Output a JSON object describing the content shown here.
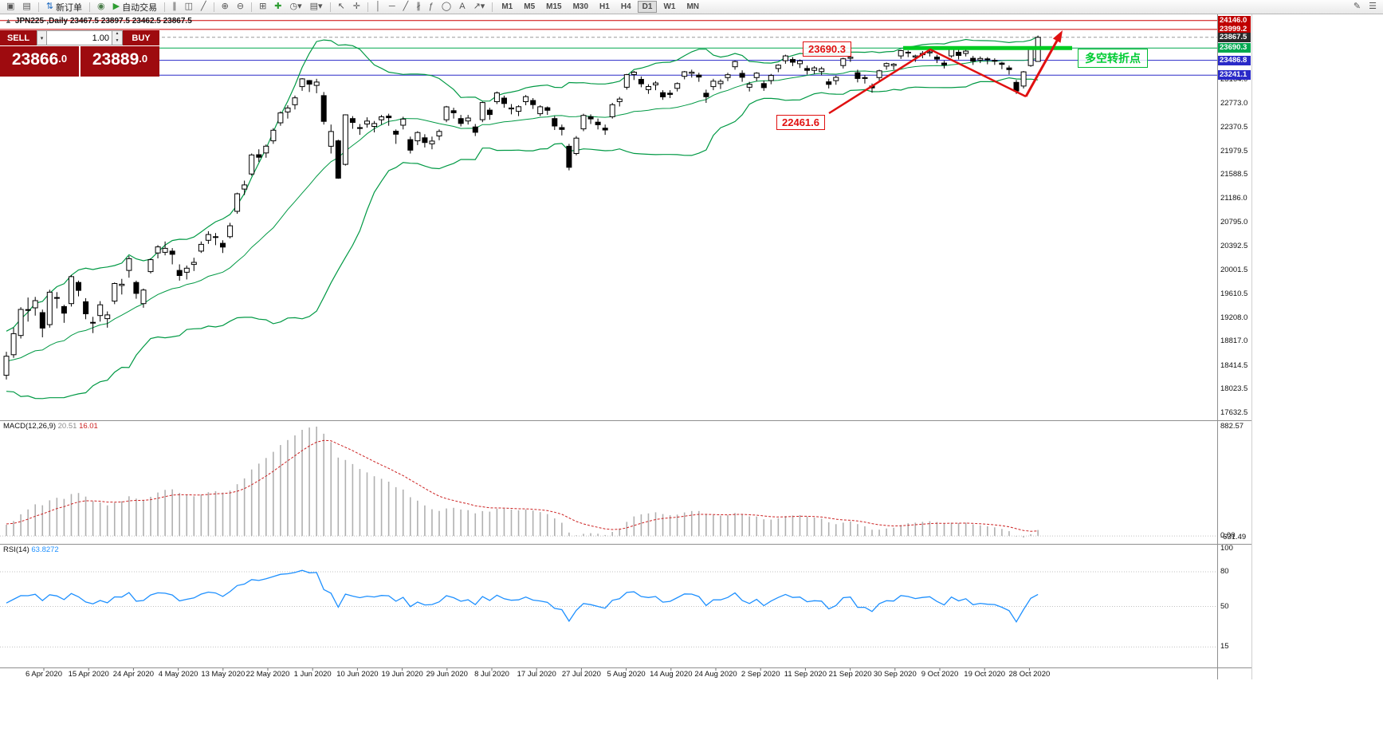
{
  "toolbar": {
    "groups": [
      {
        "items": [
          {
            "name": "new-chart-icon",
            "glyph": "▣"
          },
          {
            "name": "profiles-icon",
            "glyph": "▤"
          }
        ]
      },
      {
        "items": [
          {
            "name": "new-order-button",
            "glyph": "⇅",
            "glyph_color": "#1565c0",
            "label": "新订单"
          }
        ]
      },
      {
        "items": [
          {
            "name": "alerts-icon",
            "glyph": "◉",
            "glyph_color": "#4a7d4a"
          },
          {
            "name": "autotrade-button",
            "glyph": "▶",
            "glyph_color": "#2e9d32",
            "label": "自动交易"
          }
        ]
      },
      {
        "items": [
          {
            "name": "bar-chart-icon",
            "glyph": "∥"
          },
          {
            "name": "candlestick-chart-icon",
            "glyph": "◫"
          },
          {
            "name": "line-chart-icon",
            "glyph": "╱"
          }
        ]
      },
      {
        "items": [
          {
            "name": "zoom-in-icon",
            "glyph": "⊕"
          },
          {
            "name": "zoom-out-icon",
            "glyph": "⊖"
          }
        ]
      },
      {
        "items": [
          {
            "name": "tile-windows-icon",
            "glyph": "⊞"
          },
          {
            "name": "indicators-icon",
            "glyph": "✚",
            "glyph_color": "#2e9d32"
          },
          {
            "name": "periods-icon",
            "glyph": "◷▾"
          },
          {
            "name": "templates-icon",
            "glyph": "▤▾"
          }
        ]
      },
      {
        "items": [
          {
            "name": "cursor-icon",
            "glyph": "↖"
          },
          {
            "name": "crosshair-icon",
            "glyph": "✛"
          }
        ]
      },
      {
        "items": [
          {
            "name": "vertical-line-icon",
            "glyph": "│"
          },
          {
            "name": "horizontal-line-icon",
            "glyph": "─"
          },
          {
            "name": "trendline-icon",
            "glyph": "╱"
          },
          {
            "name": "channel-icon",
            "glyph": "∦"
          },
          {
            "name": "fibonacci-icon",
            "glyph": "ƒ"
          },
          {
            "name": "ellipse-icon",
            "glyph": "◯"
          },
          {
            "name": "text-icon",
            "glyph": "A"
          },
          {
            "name": "arrow-tool-icon",
            "glyph": "↗▾"
          }
        ]
      }
    ],
    "timeframes": [
      "M1",
      "M5",
      "M15",
      "M30",
      "H1",
      "H4",
      "D1",
      "W1",
      "MN"
    ],
    "active_timeframe": "D1",
    "right_icons": [
      {
        "name": "edit-icon",
        "glyph": "✎"
      },
      {
        "name": "menu-icon",
        "glyph": "☰"
      }
    ]
  },
  "trade_panel": {
    "sell_label": "SELL",
    "buy_label": "BUY",
    "volume": "1.00",
    "sell_price": "23866",
    "sell_frac": ".0",
    "buy_price": "23889",
    "buy_frac": ".0"
  },
  "chart": {
    "panel_toggle": "▲",
    "title": "JPN225·,Daily  23467.5 23897.5 23462.5 23867.5"
  },
  "price_axis": {
    "scale": [
      23164.0,
      22773.0,
      22370.5,
      21979.5,
      21588.5,
      21186.0,
      20795.0,
      20392.5,
      20001.5,
      19610.5,
      19208.0,
      18817.0,
      18414.5,
      18023.5,
      17632.5
    ],
    "tags": [
      {
        "label": "24146.0",
        "price": 24146.0,
        "bg": "#c00000"
      },
      {
        "label": "23999.2",
        "price": 23999.2,
        "bg": "#c00000"
      },
      {
        "label": "23867.5",
        "price": 23867.5,
        "bg": "#2a2a2a"
      },
      {
        "label": "23690.3",
        "price": 23690.3,
        "bg": "#00a84f"
      },
      {
        "label": "23486.8",
        "price": 23486.8,
        "bg": "#2a2ac8"
      },
      {
        "label": "23241.1",
        "price": 23241.1,
        "bg": "#2a2ac8"
      }
    ]
  },
  "indicator_panels": {
    "macd": {
      "name": "MACD(12,26,9)",
      "value_main": "20.51",
      "value_signal": "16.01",
      "axis_max": "882.57",
      "axis_zero": "0.00",
      "axis_min": "-631.49"
    },
    "rsi": {
      "name": "RSI(14)",
      "value": "63.8272",
      "levels": [
        100,
        80,
        50,
        15
      ]
    }
  },
  "annotations": {
    "resistance_label": "23690.3",
    "support_label": "22461.6",
    "turning_point_label": "多空转折点"
  },
  "date_axis": {
    "labels": [
      "6 Apr 2020",
      "15 Apr 2020",
      "24 Apr 2020",
      "4 May 2020",
      "13 May 2020",
      "22 May 2020",
      "1 Jun 2020",
      "10 Jun 2020",
      "19 Jun 2020",
      "29 Jun 2020",
      "8 Jul 2020",
      "17 Jul 2020",
      "27 Jul 2020",
      "5 Aug 2020",
      "14 Aug 2020",
      "24 Aug 2020",
      "2 Sep 2020",
      "11 Sep 2020",
      "21 Sep 2020",
      "30 Sep 2020",
      "9 Oct 2020",
      "19 Oct 2020",
      "28 Oct 2020"
    ]
  },
  "colors": {
    "bull": "#ffffff",
    "bear": "#000000",
    "wick": "#000000",
    "bollinger": "#009944",
    "macd_hist": "#b0b0b0",
    "macd_signal": "#cc2222",
    "rsi": "#1e90ff",
    "level_red": "#cc0000",
    "level_green": "#00a84f",
    "level_blue": "#2a2ac8",
    "annotation_red": "#e01010",
    "annotation_green": "#00cc22",
    "trade_panel": "#9e0b0f"
  },
  "chart_data": {
    "type": "candlestick",
    "symbol": "JPN225",
    "timeframe": "Daily",
    "ylim": [
      17540,
      24261
    ],
    "levels": [
      {
        "price": 24146.0,
        "color": "#cc0000",
        "style": "solid"
      },
      {
        "price": 23999.2,
        "color": "#cc0000",
        "style": "solid"
      },
      {
        "price": 23867.5,
        "color": "#999999",
        "style": "dash"
      },
      {
        "price": 23690.3,
        "color": "#00a84f",
        "style": "solid"
      },
      {
        "price": 23486.8,
        "color": "#2a2ac8",
        "style": "solid"
      },
      {
        "price": 23241.1,
        "color": "#2a2ac8",
        "style": "solid"
      }
    ],
    "overlays": {
      "bollinger": {
        "period": 20,
        "deviation": 2,
        "color": "#009944"
      }
    },
    "ohlc": [
      [
        18260,
        18650,
        18190,
        18576
      ],
      [
        18600,
        19050,
        18550,
        18950
      ],
      [
        18920,
        19390,
        18870,
        19353
      ],
      [
        19350,
        19550,
        19150,
        19345
      ],
      [
        19380,
        19560,
        19250,
        19499
      ],
      [
        19300,
        19350,
        18890,
        19043
      ],
      [
        19100,
        19680,
        19050,
        19638
      ],
      [
        19550,
        19640,
        19370,
        19550
      ],
      [
        19400,
        19430,
        19130,
        19290
      ],
      [
        19450,
        19922,
        19400,
        19897
      ],
      [
        19800,
        19830,
        19570,
        19669
      ],
      [
        19480,
        19540,
        19190,
        19280
      ],
      [
        19130,
        19230,
        18960,
        19138
      ],
      [
        19250,
        19490,
        19150,
        19429
      ],
      [
        19200,
        19320,
        19050,
        19262
      ],
      [
        19490,
        19800,
        19440,
        19783
      ],
      [
        19750,
        19860,
        19600,
        19771
      ],
      [
        20000,
        20240,
        19880,
        20194
      ],
      [
        19800,
        19830,
        19530,
        19619
      ],
      [
        19450,
        19700,
        19380,
        19675
      ],
      [
        19980,
        20200,
        19950,
        20179
      ],
      [
        20290,
        20420,
        20200,
        20390
      ],
      [
        20300,
        20480,
        20250,
        20366
      ],
      [
        20320,
        20370,
        20100,
        20267
      ],
      [
        20000,
        20100,
        19830,
        19915
      ],
      [
        19970,
        20080,
        19850,
        20037
      ],
      [
        20100,
        20210,
        19990,
        20134
      ],
      [
        20320,
        20480,
        20290,
        20433
      ],
      [
        20500,
        20650,
        20440,
        20595
      ],
      [
        20560,
        20620,
        20420,
        20552
      ],
      [
        20450,
        20500,
        20290,
        20388
      ],
      [
        20560,
        20790,
        20530,
        20741
      ],
      [
        20980,
        21290,
        20940,
        21271
      ],
      [
        21350,
        21490,
        21250,
        21419
      ],
      [
        21600,
        21940,
        21570,
        21916
      ],
      [
        21920,
        22010,
        21800,
        21878
      ],
      [
        21950,
        22090,
        21870,
        22062
      ],
      [
        22150,
        22360,
        22100,
        22326
      ],
      [
        22450,
        22640,
        22400,
        22614
      ],
      [
        22630,
        22740,
        22520,
        22696
      ],
      [
        22750,
        22900,
        22670,
        22864
      ],
      [
        23050,
        23190,
        22980,
        23178
      ],
      [
        23150,
        23160,
        22960,
        23091
      ],
      [
        23070,
        23180,
        22940,
        23125
      ],
      [
        22900,
        22960,
        22420,
        22473
      ],
      [
        22060,
        22420,
        21940,
        22305
      ],
      [
        22150,
        22170,
        21520,
        21531
      ],
      [
        21760,
        22590,
        21740,
        22582
      ],
      [
        22520,
        22560,
        22350,
        22456
      ],
      [
        22370,
        22430,
        22250,
        22355
      ],
      [
        22430,
        22540,
        22370,
        22479
      ],
      [
        22390,
        22480,
        22290,
        22437
      ],
      [
        22500,
        22580,
        22420,
        22549
      ],
      [
        22560,
        22600,
        22400,
        22534
      ],
      [
        22310,
        22340,
        22100,
        22260
      ],
      [
        22410,
        22550,
        22340,
        22512
      ],
      [
        22170,
        22220,
        21940,
        21995
      ],
      [
        22150,
        22310,
        22080,
        22288
      ],
      [
        22200,
        22260,
        22040,
        22122
      ],
      [
        22100,
        22220,
        22010,
        22146
      ],
      [
        22230,
        22340,
        22160,
        22306
      ],
      [
        22500,
        22730,
        22460,
        22714
      ],
      [
        22650,
        22700,
        22520,
        22615
      ],
      [
        22520,
        22580,
        22390,
        22439
      ],
      [
        22480,
        22580,
        22420,
        22529
      ],
      [
        22380,
        22430,
        22230,
        22291
      ],
      [
        22500,
        22800,
        22460,
        22785
      ],
      [
        22660,
        22700,
        22500,
        22587
      ],
      [
        22800,
        22970,
        22760,
        22946
      ],
      [
        22860,
        22900,
        22700,
        22770
      ],
      [
        22680,
        22760,
        22590,
        22696
      ],
      [
        22640,
        22740,
        22560,
        22717
      ],
      [
        22800,
        22910,
        22740,
        22884
      ],
      [
        22820,
        22860,
        22680,
        22751
      ],
      [
        22600,
        22740,
        22560,
        22715
      ],
      [
        22700,
        22720,
        22580,
        22657
      ],
      [
        22520,
        22560,
        22330,
        22397
      ],
      [
        22370,
        22420,
        22240,
        22339
      ],
      [
        22060,
        22100,
        21660,
        21710
      ],
      [
        21940,
        22230,
        21910,
        22195
      ],
      [
        22350,
        22600,
        22310,
        22573
      ],
      [
        22550,
        22590,
        22430,
        22514
      ],
      [
        22460,
        22520,
        22340,
        22418
      ],
      [
        22360,
        22420,
        22250,
        22330
      ],
      [
        22550,
        22780,
        22520,
        22750
      ],
      [
        22800,
        22880,
        22720,
        22843
      ],
      [
        23040,
        23260,
        23000,
        23249
      ],
      [
        23250,
        23310,
        23160,
        23289
      ],
      [
        23170,
        23220,
        23040,
        23096
      ],
      [
        23000,
        23090,
        22930,
        23051
      ],
      [
        23080,
        23140,
        22990,
        23110
      ],
      [
        22950,
        22990,
        22830,
        22880
      ],
      [
        22940,
        22990,
        22860,
        22920
      ],
      [
        23020,
        23120,
        22970,
        23100
      ],
      [
        23220,
        23310,
        23170,
        23296
      ],
      [
        23270,
        23330,
        23200,
        23290
      ],
      [
        23240,
        23280,
        23130,
        23208
      ],
      [
        22940,
        23000,
        22780,
        22882
      ],
      [
        23050,
        23180,
        22990,
        23140
      ],
      [
        23100,
        23170,
        23010,
        23138
      ],
      [
        23200,
        23280,
        23140,
        23247
      ],
      [
        23380,
        23480,
        23330,
        23466
      ],
      [
        23270,
        23320,
        23130,
        23205
      ],
      [
        23040,
        23130,
        22970,
        23090
      ],
      [
        23200,
        23290,
        23140,
        23274
      ],
      [
        23100,
        23150,
        22980,
        23033
      ],
      [
        23150,
        23260,
        23090,
        23235
      ],
      [
        23350,
        23420,
        23290,
        23406
      ],
      [
        23480,
        23580,
        23430,
        23559
      ],
      [
        23500,
        23540,
        23390,
        23455
      ],
      [
        23430,
        23500,
        23360,
        23476
      ],
      [
        23350,
        23400,
        23250,
        23319
      ],
      [
        23320,
        23390,
        23260,
        23360
      ],
      [
        23300,
        23380,
        23240,
        23346
      ],
      [
        23130,
        23180,
        23020,
        23087
      ],
      [
        23150,
        23230,
        23080,
        23204
      ],
      [
        23400,
        23530,
        23350,
        23512
      ],
      [
        23520,
        23570,
        23460,
        23539
      ],
      [
        23280,
        23330,
        23120,
        23185
      ],
      [
        23200,
        23240,
        23100,
        23185
      ],
      [
        23060,
        23100,
        22950,
        23030
      ],
      [
        23200,
        23330,
        23150,
        23312
      ],
      [
        23390,
        23450,
        23330,
        23433
      ],
      [
        23400,
        23440,
        23330,
        23422
      ],
      [
        23560,
        23660,
        23510,
        23647
      ],
      [
        23610,
        23650,
        23540,
        23620
      ],
      [
        23540,
        23580,
        23460,
        23559
      ],
      [
        23580,
        23640,
        23520,
        23601
      ],
      [
        23610,
        23660,
        23550,
        23627
      ],
      [
        23540,
        23580,
        23440,
        23507
      ],
      [
        23440,
        23480,
        23350,
        23411
      ],
      [
        23560,
        23700,
        23530,
        23671
      ],
      [
        23620,
        23660,
        23500,
        23567
      ],
      [
        23600,
        23670,
        23550,
        23639
      ],
      [
        23520,
        23560,
        23410,
        23474
      ],
      [
        23490,
        23550,
        23440,
        23517
      ],
      [
        23510,
        23540,
        23420,
        23494
      ],
      [
        23480,
        23520,
        23410,
        23486
      ],
      [
        23440,
        23460,
        23340,
        23419
      ],
      [
        23360,
        23400,
        23250,
        23332
      ],
      [
        23120,
        23160,
        22930,
        22977
      ],
      [
        23060,
        23310,
        23020,
        23295
      ],
      [
        23400,
        23710,
        23380,
        23695
      ],
      [
        23467.5,
        23897.5,
        23462.5,
        23867.5
      ]
    ]
  }
}
